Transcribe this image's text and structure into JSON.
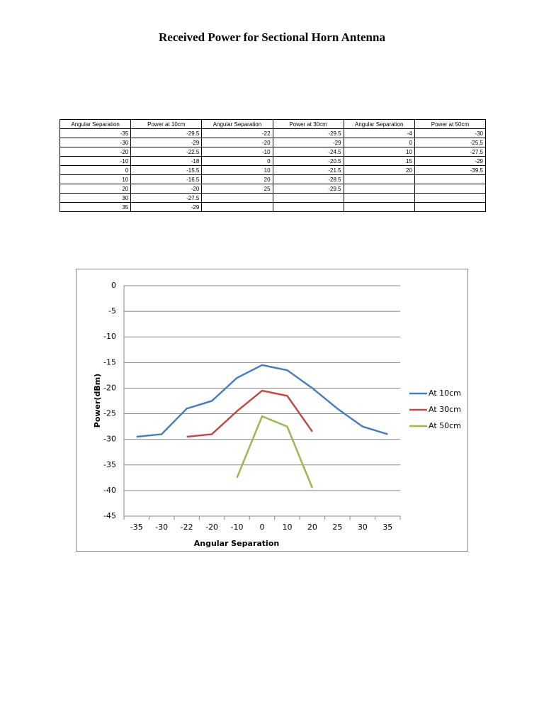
{
  "title": "Received Power for Sectional Horn Antenna",
  "table": {
    "headers": [
      "Angular Separation",
      "Power at 10cm",
      "Angular Separation",
      "Power at 30cm",
      "Angular Separation",
      "Power at 50cm"
    ],
    "columns": [
      [
        "-35",
        "-30",
        "-20",
        "-10",
        "0",
        "10",
        "20",
        "30",
        "35"
      ],
      [
        "-29.5",
        "-29",
        "-22.5",
        "-18",
        "-15.5",
        "-16.5",
        "-20",
        "-27.5",
        "-29"
      ],
      [
        "-22",
        "-20",
        "-10",
        "0",
        "10",
        "20",
        "25"
      ],
      [
        "-29.5",
        "-29",
        "-24.5",
        "-20.5",
        "-21.5",
        "-28.5",
        "-29.5"
      ],
      [
        "-4",
        "0",
        "10",
        "15",
        "20"
      ],
      [
        "-30",
        "-25.5",
        "-27.5",
        "-29",
        "-39.5"
      ]
    ]
  },
  "chart_data": {
    "type": "line",
    "xlabel": "Angular Separation",
    "ylabel": "Power(dBm)",
    "categories": [
      "-35",
      "-30",
      "-22",
      "-20",
      "-10",
      "0",
      "10",
      "20",
      "25",
      "30",
      "35"
    ],
    "series": [
      {
        "name": "At 10cm",
        "color": "#4a7ebb",
        "values": [
          -29.5,
          -29,
          -24,
          -22.5,
          -18,
          -15.5,
          -16.5,
          -20,
          -24,
          -27.5,
          -29
        ]
      },
      {
        "name": "At 30cm",
        "color": "#be4b48",
        "values": [
          null,
          null,
          -29.5,
          -29,
          -24.5,
          -20.5,
          -21.5,
          -28.5,
          null,
          null,
          null
        ]
      },
      {
        "name": "At 50cm",
        "color": "#98b954",
        "values": [
          null,
          null,
          null,
          null,
          -37.5,
          -25.5,
          -27.5,
          -39.5,
          null,
          null,
          null
        ]
      }
    ],
    "ylim": [
      -45,
      0
    ],
    "yticks": [
      0,
      -5,
      -10,
      -15,
      -20,
      -25,
      -30,
      -35,
      -40,
      -45
    ],
    "grid": true,
    "legend": "right"
  }
}
